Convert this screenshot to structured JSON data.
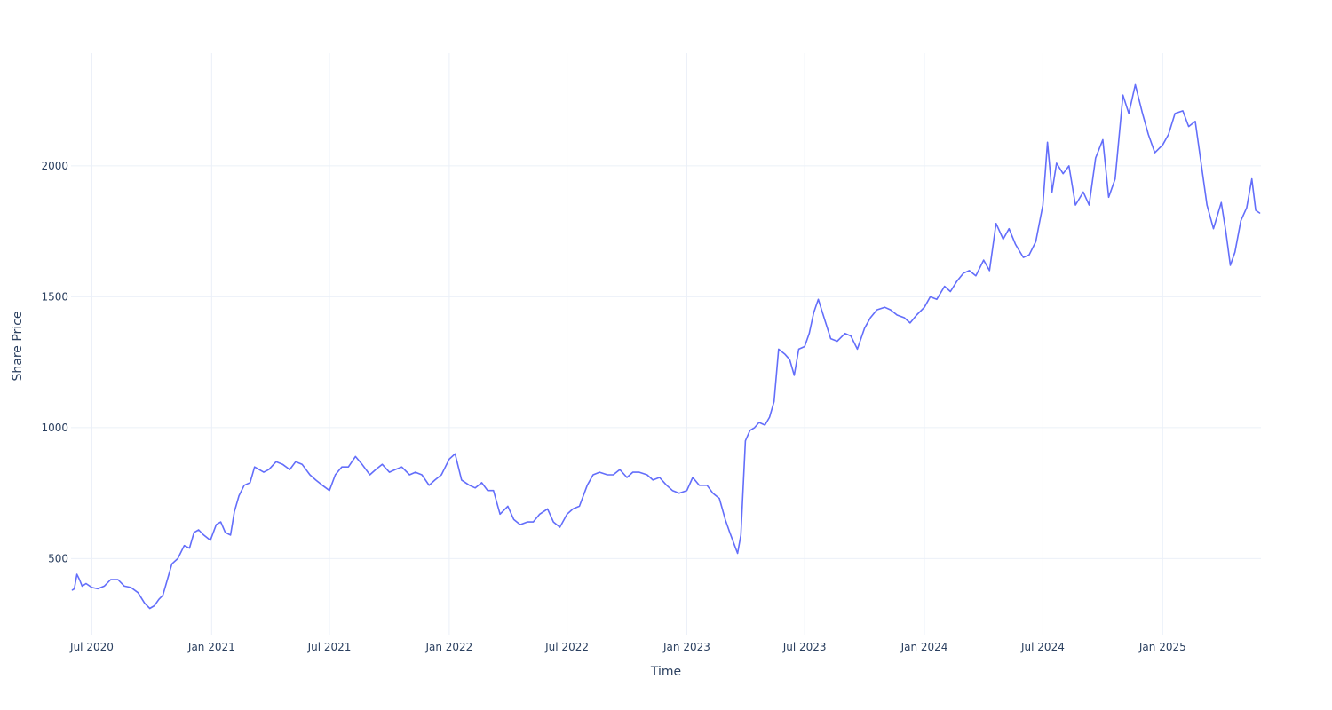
{
  "chart_data": {
    "type": "line",
    "title": "",
    "xlabel": "Time",
    "ylabel": "Share Price",
    "x_type": "date",
    "xlim": [
      "2020-05-30",
      "2025-06-01"
    ],
    "ylim": [
      210,
      2430
    ],
    "x_ticks": [
      {
        "date": "2020-07-01",
        "label": "Jul 2020"
      },
      {
        "date": "2021-01-01",
        "label": "Jan 2021"
      },
      {
        "date": "2021-07-01",
        "label": "Jul 2021"
      },
      {
        "date": "2022-01-01",
        "label": "Jan 2022"
      },
      {
        "date": "2022-07-01",
        "label": "Jul 2022"
      },
      {
        "date": "2023-01-01",
        "label": "Jan 2023"
      },
      {
        "date": "2023-07-01",
        "label": "Jul 2023"
      },
      {
        "date": "2024-01-01",
        "label": "Jan 2024"
      },
      {
        "date": "2024-07-01",
        "label": "Jul 2024"
      },
      {
        "date": "2025-01-01",
        "label": "Jan 2025"
      }
    ],
    "y_ticks": [
      {
        "value": 500,
        "label": "500"
      },
      {
        "value": 1000,
        "label": "1000"
      },
      {
        "value": 1500,
        "label": "1500"
      },
      {
        "value": 2000,
        "label": "2000"
      }
    ],
    "grid": true,
    "legend": "none",
    "colors": {
      "series": "#636efa",
      "grid": "#ebf0f8",
      "text": "#2a3f5f",
      "background": "#ffffff"
    },
    "series": [
      {
        "x": [
          "2020-06-01",
          "2020-06-04",
          "2020-06-08",
          "2020-06-12",
          "2020-06-16",
          "2020-06-22",
          "2020-07-01",
          "2020-07-10",
          "2020-07-20",
          "2020-07-30",
          "2020-08-10",
          "2020-08-20",
          "2020-08-30",
          "2020-09-10",
          "2020-09-20",
          "2020-09-28",
          "2020-10-05",
          "2020-10-12",
          "2020-10-18",
          "2020-10-25",
          "2020-11-01",
          "2020-11-10",
          "2020-11-20",
          "2020-11-28",
          "2020-12-05",
          "2020-12-12",
          "2020-12-20",
          "2020-12-30",
          "2021-01-08",
          "2021-01-15",
          "2021-01-22",
          "2021-01-30",
          "2021-02-05",
          "2021-02-12",
          "2021-02-20",
          "2021-03-01",
          "2021-03-08",
          "2021-03-15",
          "2021-03-22",
          "2021-03-30",
          "2021-04-10",
          "2021-04-20",
          "2021-05-01",
          "2021-05-10",
          "2021-05-20",
          "2021-06-01",
          "2021-06-10",
          "2021-06-20",
          "2021-07-01",
          "2021-07-10",
          "2021-07-20",
          "2021-07-30",
          "2021-08-10",
          "2021-08-20",
          "2021-09-01",
          "2021-09-10",
          "2021-09-20",
          "2021-10-01",
          "2021-10-10",
          "2021-10-20",
          "2021-11-01",
          "2021-11-10",
          "2021-11-20",
          "2021-12-01",
          "2021-12-10",
          "2021-12-20",
          "2022-01-01",
          "2022-01-10",
          "2022-01-20",
          "2022-02-01",
          "2022-02-10",
          "2022-02-20",
          "2022-03-01",
          "2022-03-10",
          "2022-03-20",
          "2022-04-01",
          "2022-04-10",
          "2022-04-20",
          "2022-05-01",
          "2022-05-10",
          "2022-05-20",
          "2022-06-01",
          "2022-06-10",
          "2022-06-20",
          "2022-07-01",
          "2022-07-10",
          "2022-07-20",
          "2022-08-01",
          "2022-08-10",
          "2022-08-20",
          "2022-09-01",
          "2022-09-10",
          "2022-09-20",
          "2022-10-01",
          "2022-10-10",
          "2022-10-20",
          "2022-11-01",
          "2022-11-10",
          "2022-11-20",
          "2022-12-01",
          "2022-12-10",
          "2022-12-20",
          "2023-01-01",
          "2023-01-10",
          "2023-01-20",
          "2023-02-01",
          "2023-02-10",
          "2023-02-20",
          "2023-03-01",
          "2023-03-08",
          "2023-03-14",
          "2023-03-20",
          "2023-03-25",
          "2023-04-01",
          "2023-04-08",
          "2023-04-15",
          "2023-04-22",
          "2023-05-01",
          "2023-05-08",
          "2023-05-15",
          "2023-05-22",
          "2023-06-01",
          "2023-06-08",
          "2023-06-15",
          "2023-06-22",
          "2023-07-01",
          "2023-07-08",
          "2023-07-15",
          "2023-07-22",
          "2023-08-01",
          "2023-08-10",
          "2023-08-20",
          "2023-09-01",
          "2023-09-10",
          "2023-09-20",
          "2023-10-01",
          "2023-10-10",
          "2023-10-20",
          "2023-11-01",
          "2023-11-10",
          "2023-11-20",
          "2023-12-01",
          "2023-12-10",
          "2023-12-20",
          "2024-01-01",
          "2024-01-10",
          "2024-01-20",
          "2024-02-01",
          "2024-02-10",
          "2024-02-20",
          "2024-03-01",
          "2024-03-10",
          "2024-03-20",
          "2024-04-01",
          "2024-04-10",
          "2024-04-20",
          "2024-05-01",
          "2024-05-10",
          "2024-05-20",
          "2024-06-01",
          "2024-06-10",
          "2024-06-20",
          "2024-07-01",
          "2024-07-08",
          "2024-07-15",
          "2024-07-22",
          "2024-08-01",
          "2024-08-10",
          "2024-08-20",
          "2024-09-01",
          "2024-09-10",
          "2024-09-20",
          "2024-10-01",
          "2024-10-10",
          "2024-10-20",
          "2024-11-01",
          "2024-11-10",
          "2024-11-20",
          "2024-12-01",
          "2024-12-10",
          "2024-12-20",
          "2025-01-01",
          "2025-01-10",
          "2025-01-20",
          "2025-02-01",
          "2025-02-10",
          "2025-02-20",
          "2025-03-01",
          "2025-03-10",
          "2025-03-20",
          "2025-04-01",
          "2025-04-08",
          "2025-04-15",
          "2025-04-22",
          "2025-05-01",
          "2025-05-10",
          "2025-05-18",
          "2025-05-24",
          "2025-05-30"
        ],
        "y": [
          380,
          385,
          440,
          420,
          395,
          405,
          390,
          385,
          395,
          420,
          420,
          395,
          390,
          370,
          330,
          310,
          320,
          345,
          360,
          420,
          480,
          500,
          550,
          540,
          600,
          610,
          590,
          570,
          630,
          640,
          600,
          590,
          680,
          740,
          780,
          790,
          850,
          840,
          830,
          840,
          870,
          860,
          840,
          870,
          860,
          820,
          800,
          780,
          760,
          820,
          850,
          850,
          890,
          860,
          820,
          840,
          860,
          830,
          840,
          850,
          820,
          830,
          820,
          780,
          800,
          820,
          880,
          900,
          800,
          780,
          770,
          790,
          760,
          760,
          670,
          700,
          650,
          630,
          640,
          640,
          670,
          690,
          640,
          620,
          670,
          690,
          700,
          780,
          820,
          830,
          820,
          820,
          840,
          810,
          830,
          830,
          820,
          800,
          810,
          780,
          760,
          750,
          760,
          810,
          780,
          780,
          750,
          730,
          650,
          600,
          560,
          520,
          590,
          950,
          990,
          1000,
          1020,
          1010,
          1040,
          1100,
          1300,
          1280,
          1260,
          1200,
          1300,
          1310,
          1360,
          1440,
          1490,
          1410,
          1340,
          1330,
          1360,
          1350,
          1300,
          1380,
          1420,
          1450,
          1460,
          1450,
          1430,
          1420,
          1400,
          1430,
          1460,
          1500,
          1490,
          1540,
          1520,
          1560,
          1590,
          1600,
          1580,
          1640,
          1600,
          1780,
          1720,
          1760,
          1700,
          1650,
          1660,
          1710,
          1850,
          2090,
          1900,
          2010,
          1970,
          2000,
          1850,
          1900,
          1850,
          2030,
          2100,
          1880,
          1950,
          2270,
          2200,
          2310,
          2200,
          2120,
          2050,
          2080,
          2120,
          2200,
          2210,
          2150,
          2170,
          2010,
          1850,
          1760,
          1860,
          1750,
          1620,
          1670,
          1790,
          1840,
          1950,
          1830,
          1820
        ]
      }
    ]
  }
}
